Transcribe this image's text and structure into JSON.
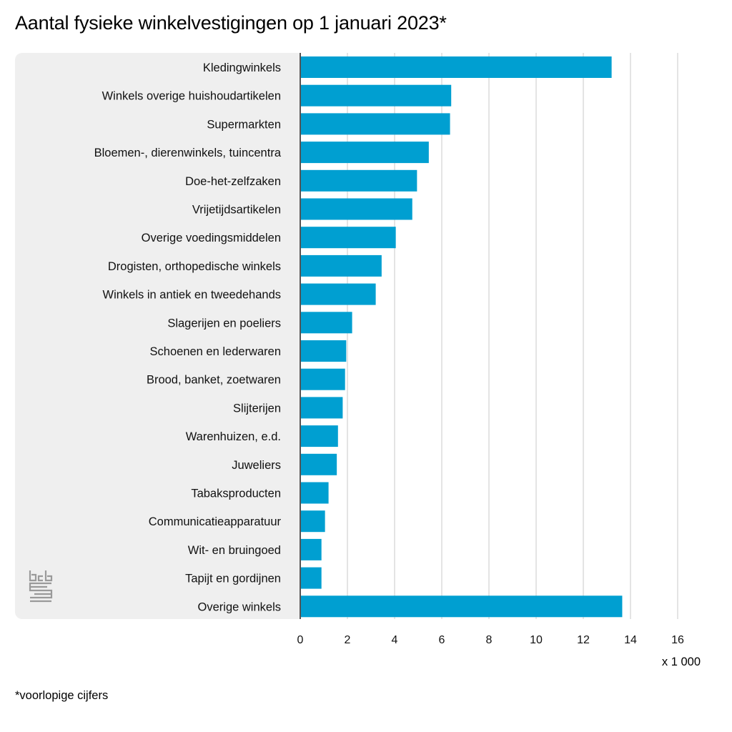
{
  "title": "Aantal fysieke winkelvestigingen op 1 januari 2023*",
  "footnote": "*voorlopige cijfers",
  "logo_icon": "cbs-logo-icon",
  "colors": {
    "bar": "#009fd1",
    "panel": "#efefef",
    "grid": "#c8c8c8",
    "axis": "#555555"
  },
  "chart_data": {
    "type": "bar",
    "orientation": "horizontal",
    "categories": [
      "Kledingwinkels",
      "Winkels overige huishoudartikelen",
      "Supermarkten",
      "Bloemen-, dierenwinkels, tuincentra",
      "Doe-het-zelfzaken",
      "Vrijetijdsartikelen",
      "Overige voedingsmiddelen",
      "Drogisten, orthopedische winkels",
      "Winkels in antiek en tweedehands",
      "Slagerijen en poeliers",
      "Schoenen en lederwaren",
      "Brood, banket, zoetwaren",
      "Slijterijen",
      "Warenhuizen, e.d.",
      "Juweliers",
      "Tabaksproducten",
      "Communicatieapparatuur",
      "Wit- en bruingoed",
      "Tapijt en gordijnen",
      "Overige winkels"
    ],
    "values": [
      13.2,
      6.4,
      6.35,
      5.45,
      4.95,
      4.75,
      4.05,
      3.45,
      3.2,
      2.2,
      1.95,
      1.9,
      1.8,
      1.6,
      1.55,
      1.2,
      1.05,
      0.9,
      0.9,
      13.65
    ],
    "xlim": [
      0,
      16
    ],
    "xticks": [
      0,
      2,
      4,
      6,
      8,
      10,
      12,
      14,
      16
    ],
    "unit_label": "x 1 000",
    "grid": true,
    "legend": "none"
  }
}
